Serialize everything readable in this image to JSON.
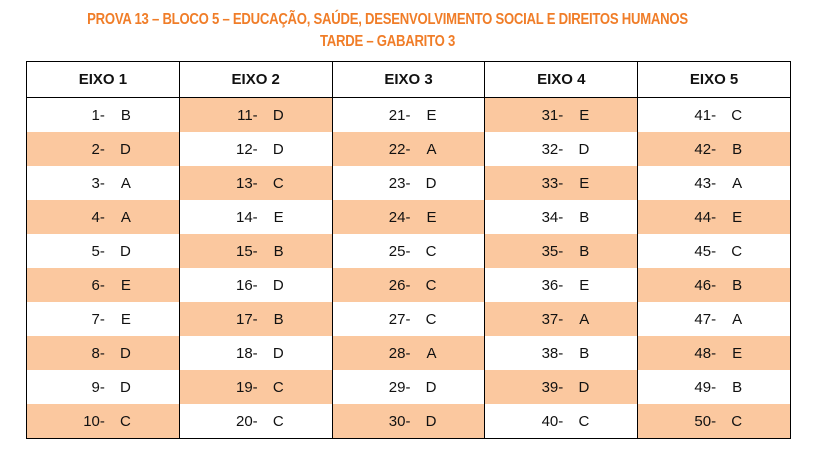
{
  "header": {
    "line1": "PROVA 13 – BLOCO 5 – EDUCAÇÃO, SAÚDE, DESENVOLVIMENTO SOCIAL E DIREITOS HUMANOS",
    "line2": "TARDE – GABARITO 3",
    "accent_color": "#f07d28"
  },
  "table": {
    "highlight_color": "#fbc89f",
    "columns": [
      "EIXO 1",
      "EIXO 2",
      "EIXO 3",
      "EIXO 4",
      "EIXO 5"
    ],
    "rows": [
      [
        {
          "num": "1-",
          "ans": "B",
          "hl": false
        },
        {
          "num": "11-",
          "ans": "D",
          "hl": true
        },
        {
          "num": "21-",
          "ans": "E",
          "hl": false
        },
        {
          "num": "31-",
          "ans": "E",
          "hl": true
        },
        {
          "num": "41-",
          "ans": "C",
          "hl": false
        }
      ],
      [
        {
          "num": "2-",
          "ans": "D",
          "hl": true
        },
        {
          "num": "12-",
          "ans": "D",
          "hl": false
        },
        {
          "num": "22-",
          "ans": "A",
          "hl": true
        },
        {
          "num": "32-",
          "ans": "D",
          "hl": false
        },
        {
          "num": "42-",
          "ans": "B",
          "hl": true
        }
      ],
      [
        {
          "num": "3-",
          "ans": "A",
          "hl": false
        },
        {
          "num": "13-",
          "ans": "C",
          "hl": true
        },
        {
          "num": "23-",
          "ans": "D",
          "hl": false
        },
        {
          "num": "33-",
          "ans": "E",
          "hl": true
        },
        {
          "num": "43-",
          "ans": "A",
          "hl": false
        }
      ],
      [
        {
          "num": "4-",
          "ans": "A",
          "hl": true
        },
        {
          "num": "14-",
          "ans": "E",
          "hl": false
        },
        {
          "num": "24-",
          "ans": "E",
          "hl": true
        },
        {
          "num": "34-",
          "ans": "B",
          "hl": false
        },
        {
          "num": "44-",
          "ans": "E",
          "hl": true
        }
      ],
      [
        {
          "num": "5-",
          "ans": "D",
          "hl": false
        },
        {
          "num": "15-",
          "ans": "B",
          "hl": true
        },
        {
          "num": "25-",
          "ans": "C",
          "hl": false
        },
        {
          "num": "35-",
          "ans": "B",
          "hl": true
        },
        {
          "num": "45-",
          "ans": "C",
          "hl": false
        }
      ],
      [
        {
          "num": "6-",
          "ans": "E",
          "hl": true
        },
        {
          "num": "16-",
          "ans": "D",
          "hl": false
        },
        {
          "num": "26-",
          "ans": "C",
          "hl": true
        },
        {
          "num": "36-",
          "ans": "E",
          "hl": false
        },
        {
          "num": "46-",
          "ans": "B",
          "hl": true
        }
      ],
      [
        {
          "num": "7-",
          "ans": "E",
          "hl": false
        },
        {
          "num": "17-",
          "ans": "B",
          "hl": true
        },
        {
          "num": "27-",
          "ans": "C",
          "hl": false
        },
        {
          "num": "37-",
          "ans": "A",
          "hl": true
        },
        {
          "num": "47-",
          "ans": "A",
          "hl": false
        }
      ],
      [
        {
          "num": "8-",
          "ans": "D",
          "hl": true
        },
        {
          "num": "18-",
          "ans": "D",
          "hl": false
        },
        {
          "num": "28-",
          "ans": "A",
          "hl": true
        },
        {
          "num": "38-",
          "ans": "B",
          "hl": false
        },
        {
          "num": "48-",
          "ans": "E",
          "hl": true
        }
      ],
      [
        {
          "num": "9-",
          "ans": "D",
          "hl": false
        },
        {
          "num": "19-",
          "ans": "C",
          "hl": true
        },
        {
          "num": "29-",
          "ans": "D",
          "hl": false
        },
        {
          "num": "39-",
          "ans": "D",
          "hl": true
        },
        {
          "num": "49-",
          "ans": "B",
          "hl": false
        }
      ],
      [
        {
          "num": "10-",
          "ans": "C",
          "hl": true
        },
        {
          "num": "20-",
          "ans": "C",
          "hl": false
        },
        {
          "num": "30-",
          "ans": "D",
          "hl": true
        },
        {
          "num": "40-",
          "ans": "C",
          "hl": false
        },
        {
          "num": "50-",
          "ans": "C",
          "hl": true
        }
      ]
    ]
  }
}
